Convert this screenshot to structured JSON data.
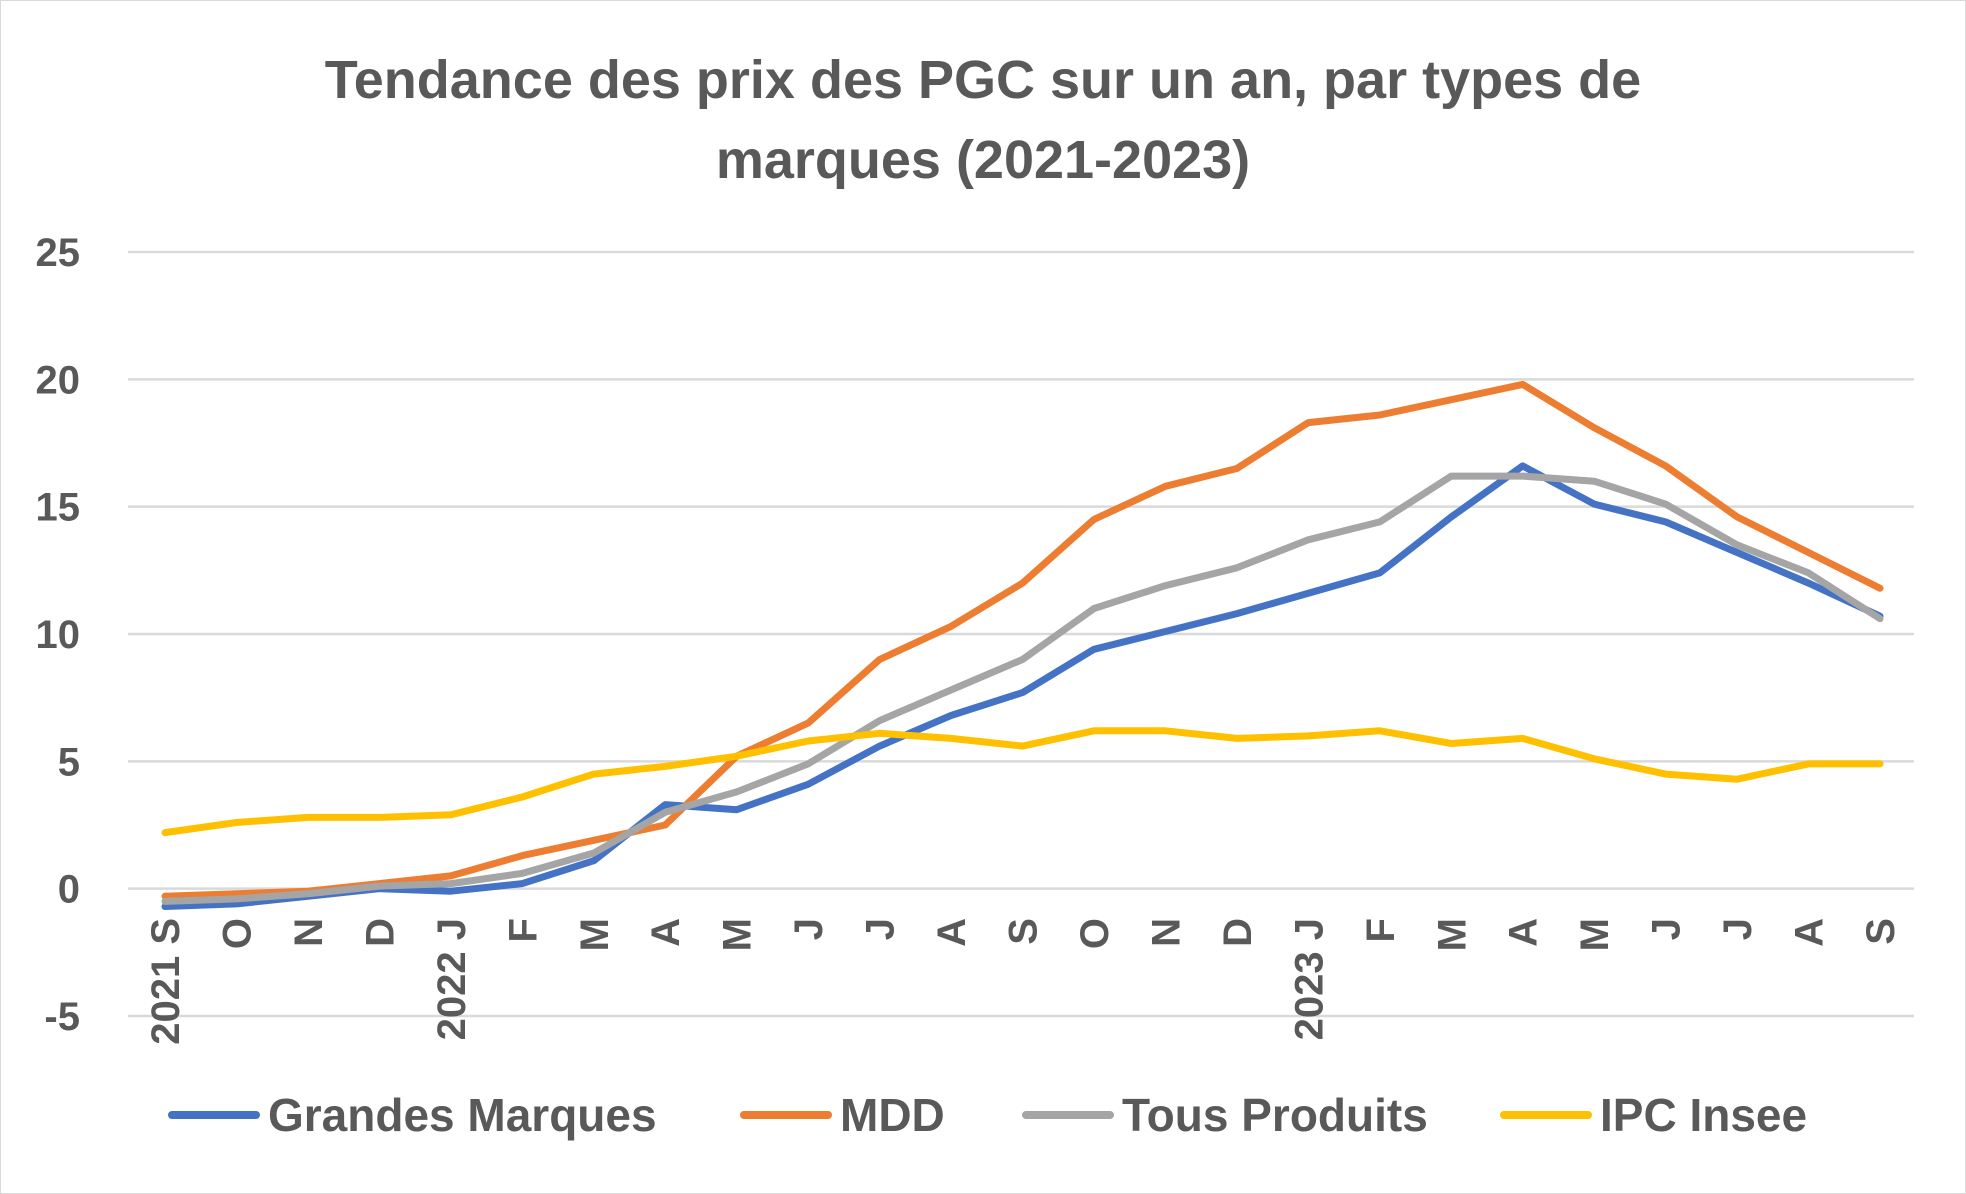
{
  "chart_data": {
    "type": "line",
    "title_lines": [
      "Tendance des prix des PGC sur un an, par types de",
      "marques (2021-2023)"
    ],
    "categories": [
      "2021 S",
      "O",
      "N",
      "D",
      "2022 J",
      "F",
      "M",
      "A",
      "M",
      "J",
      "J",
      "A",
      "S",
      "O",
      "N",
      "D",
      "2023 J",
      "F",
      "M",
      "A",
      "M",
      "J",
      "J",
      "A",
      "S"
    ],
    "ylim": [
      -5,
      25
    ],
    "yticks": [
      -5,
      0,
      5,
      10,
      15,
      20,
      25
    ],
    "grid": true,
    "legend_position": "bottom",
    "series": [
      {
        "name": "Grandes Marques",
        "color": "#4472c4",
        "values": [
          -0.7,
          -0.6,
          -0.3,
          0.0,
          -0.1,
          0.2,
          1.1,
          3.3,
          3.1,
          4.1,
          5.6,
          6.8,
          7.7,
          9.4,
          10.1,
          10.8,
          11.6,
          12.4,
          14.6,
          16.6,
          15.1,
          14.4,
          13.2,
          12.0,
          10.7
        ]
      },
      {
        "name": "MDD",
        "color": "#ed7d31",
        "values": [
          -0.3,
          -0.2,
          -0.1,
          0.2,
          0.5,
          1.3,
          1.9,
          2.5,
          5.2,
          6.5,
          9.0,
          10.3,
          12.0,
          14.5,
          15.8,
          16.5,
          18.3,
          18.6,
          19.2,
          19.8,
          18.1,
          16.6,
          14.6,
          13.2,
          11.8
        ]
      },
      {
        "name": "Tous Produits",
        "color": "#a5a5a5",
        "values": [
          -0.5,
          -0.4,
          -0.2,
          0.1,
          0.2,
          0.6,
          1.4,
          3.0,
          3.8,
          4.9,
          6.6,
          7.8,
          9.0,
          11.0,
          11.9,
          12.6,
          13.7,
          14.4,
          16.2,
          16.2,
          16.0,
          15.1,
          13.5,
          12.4,
          10.6
        ]
      },
      {
        "name": "IPC Insee",
        "color": "#ffc000",
        "values": [
          2.2,
          2.6,
          2.8,
          2.8,
          2.9,
          3.6,
          4.5,
          4.8,
          5.2,
          5.8,
          6.1,
          5.9,
          5.6,
          6.2,
          6.2,
          5.9,
          6.0,
          6.2,
          5.7,
          5.9,
          5.1,
          4.5,
          4.3,
          4.9,
          4.9
        ]
      }
    ]
  }
}
